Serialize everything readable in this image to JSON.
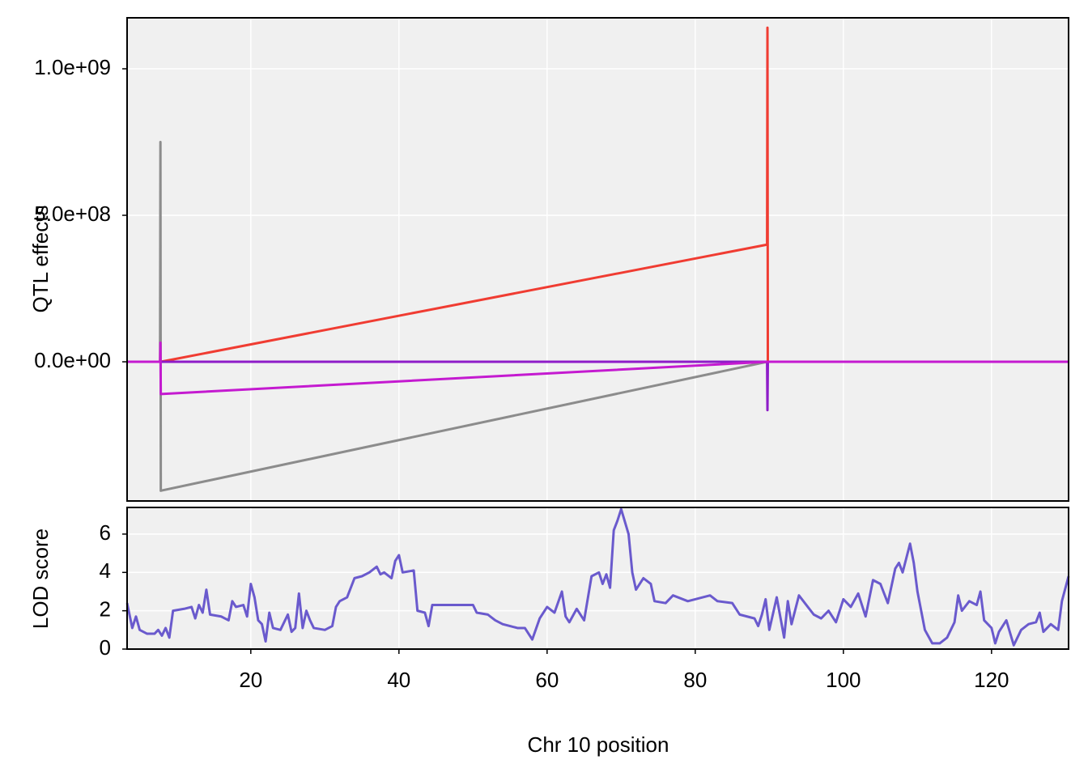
{
  "chart_data": [
    {
      "type": "line",
      "ylabel": "QTL effects",
      "x": [
        3.3,
        7.75,
        7.8,
        7.85,
        89.7,
        89.75,
        89.8,
        130.4
      ],
      "series": [
        {
          "color": "#8c8c8c",
          "values": [
            0,
            0,
            750000000,
            -440000000,
            0,
            0,
            0,
            0
          ]
        },
        {
          "color": "#f03c32",
          "values": [
            0,
            0,
            0,
            0,
            400000000,
            1140000000,
            0,
            0
          ]
        },
        {
          "color": "#8e1cc8",
          "values": [
            0,
            0,
            0,
            0,
            0,
            -165000000,
            0,
            0
          ]
        },
        {
          "color": "#c41ad0",
          "values": [
            0,
            0,
            65000000,
            -110000000,
            0,
            0,
            0,
            0
          ]
        }
      ],
      "xlim": [
        3.3,
        130.4
      ],
      "ylim": [
        -475000000,
        1174000000
      ],
      "yticks": [
        {
          "value": 0,
          "label": "0.0e+00"
        },
        {
          "value": 500000000,
          "label": "5.0e+08"
        },
        {
          "value": 1000000000,
          "label": "1.0e+09"
        }
      ],
      "grid": true
    },
    {
      "type": "line",
      "ylabel": "LOD score",
      "xlabel": "Chr 10 position",
      "color": "#6a5acd",
      "x": [
        3.3,
        4,
        4.5,
        5,
        6,
        7,
        7.5,
        8,
        8.5,
        9,
        9.5,
        11,
        12,
        12.5,
        13,
        13.5,
        14,
        14.5,
        16,
        17,
        17.5,
        18,
        19,
        19.5,
        20,
        20.5,
        21,
        21.5,
        22,
        22.5,
        23,
        24,
        25,
        25.5,
        26,
        26.5,
        27,
        27.5,
        28,
        28.5,
        30,
        31,
        31.5,
        32,
        33,
        34,
        35,
        36,
        37,
        37.5,
        38,
        39,
        39.5,
        40,
        40.5,
        42,
        42.5,
        43.5,
        44,
        44.5,
        46,
        48,
        50,
        50.5,
        52,
        53,
        54,
        55,
        56,
        57,
        58,
        59,
        60,
        61,
        62,
        62.5,
        63,
        64,
        65,
        66,
        67,
        67.5,
        68,
        68.5,
        69,
        69.5,
        70,
        71,
        71.5,
        72,
        73,
        74,
        74.5,
        76,
        77,
        79,
        81,
        82,
        83,
        85,
        86,
        87,
        88,
        88.5,
        89,
        89.5,
        90,
        91,
        92,
        92.5,
        93,
        94,
        95,
        96,
        97,
        98,
        99,
        100,
        101,
        102,
        103,
        104,
        105,
        106,
        107,
        107.5,
        108,
        109,
        109.5,
        110,
        111,
        112,
        113,
        114,
        115,
        115.5,
        116,
        117,
        118,
        118.5,
        119,
        120,
        120.5,
        121,
        122,
        123,
        124,
        125,
        126,
        126.5,
        127,
        128,
        129,
        129.5,
        130.4
      ],
      "values": [
        2.4,
        1.1,
        1.7,
        1.0,
        0.8,
        0.8,
        1.0,
        0.7,
        1.1,
        0.6,
        2.0,
        2.1,
        2.2,
        1.6,
        2.3,
        1.9,
        3.1,
        1.8,
        1.7,
        1.5,
        2.5,
        2.2,
        2.3,
        1.7,
        3.4,
        2.7,
        1.5,
        1.3,
        0.4,
        1.9,
        1.1,
        1.0,
        1.8,
        0.9,
        1.1,
        2.9,
        1.1,
        2.0,
        1.5,
        1.1,
        1.0,
        1.2,
        2.2,
        2.5,
        2.7,
        3.7,
        3.8,
        4.0,
        4.3,
        3.9,
        4.0,
        3.7,
        4.6,
        4.9,
        4.0,
        4.1,
        2.0,
        1.9,
        1.2,
        2.3,
        2.3,
        2.3,
        2.3,
        1.9,
        1.8,
        1.5,
        1.3,
        1.2,
        1.1,
        1.1,
        0.5,
        1.6,
        2.2,
        1.9,
        3.0,
        1.7,
        1.4,
        2.1,
        1.5,
        3.8,
        4.0,
        3.4,
        3.9,
        3.2,
        6.2,
        6.7,
        7.3,
        6.0,
        4.0,
        3.1,
        3.7,
        3.4,
        2.5,
        2.4,
        2.8,
        2.5,
        2.7,
        2.8,
        2.5,
        2.4,
        1.8,
        1.7,
        1.6,
        1.2,
        1.8,
        2.6,
        1.0,
        2.7,
        0.6,
        2.5,
        1.3,
        2.8,
        2.3,
        1.8,
        1.6,
        2.0,
        1.4,
        2.6,
        2.2,
        2.9,
        1.7,
        3.6,
        3.4,
        2.4,
        4.2,
        4.5,
        4.0,
        5.5,
        4.5,
        3.0,
        1.0,
        0.3,
        0.3,
        0.6,
        1.4,
        2.8,
        2.0,
        2.5,
        2.3,
        3.0,
        1.5,
        1.1,
        0.3,
        0.9,
        1.5,
        0.2,
        1.0,
        1.3,
        1.4,
        1.9,
        0.9,
        1.3,
        1.0,
        2.5,
        3.8
      ],
      "xlim": [
        3.3,
        130.4
      ],
      "ylim": [
        0,
        7.39
      ],
      "xticks": [
        20,
        40,
        60,
        80,
        100,
        120
      ],
      "yticks": [
        0,
        2,
        4,
        6
      ],
      "grid": true
    }
  ]
}
